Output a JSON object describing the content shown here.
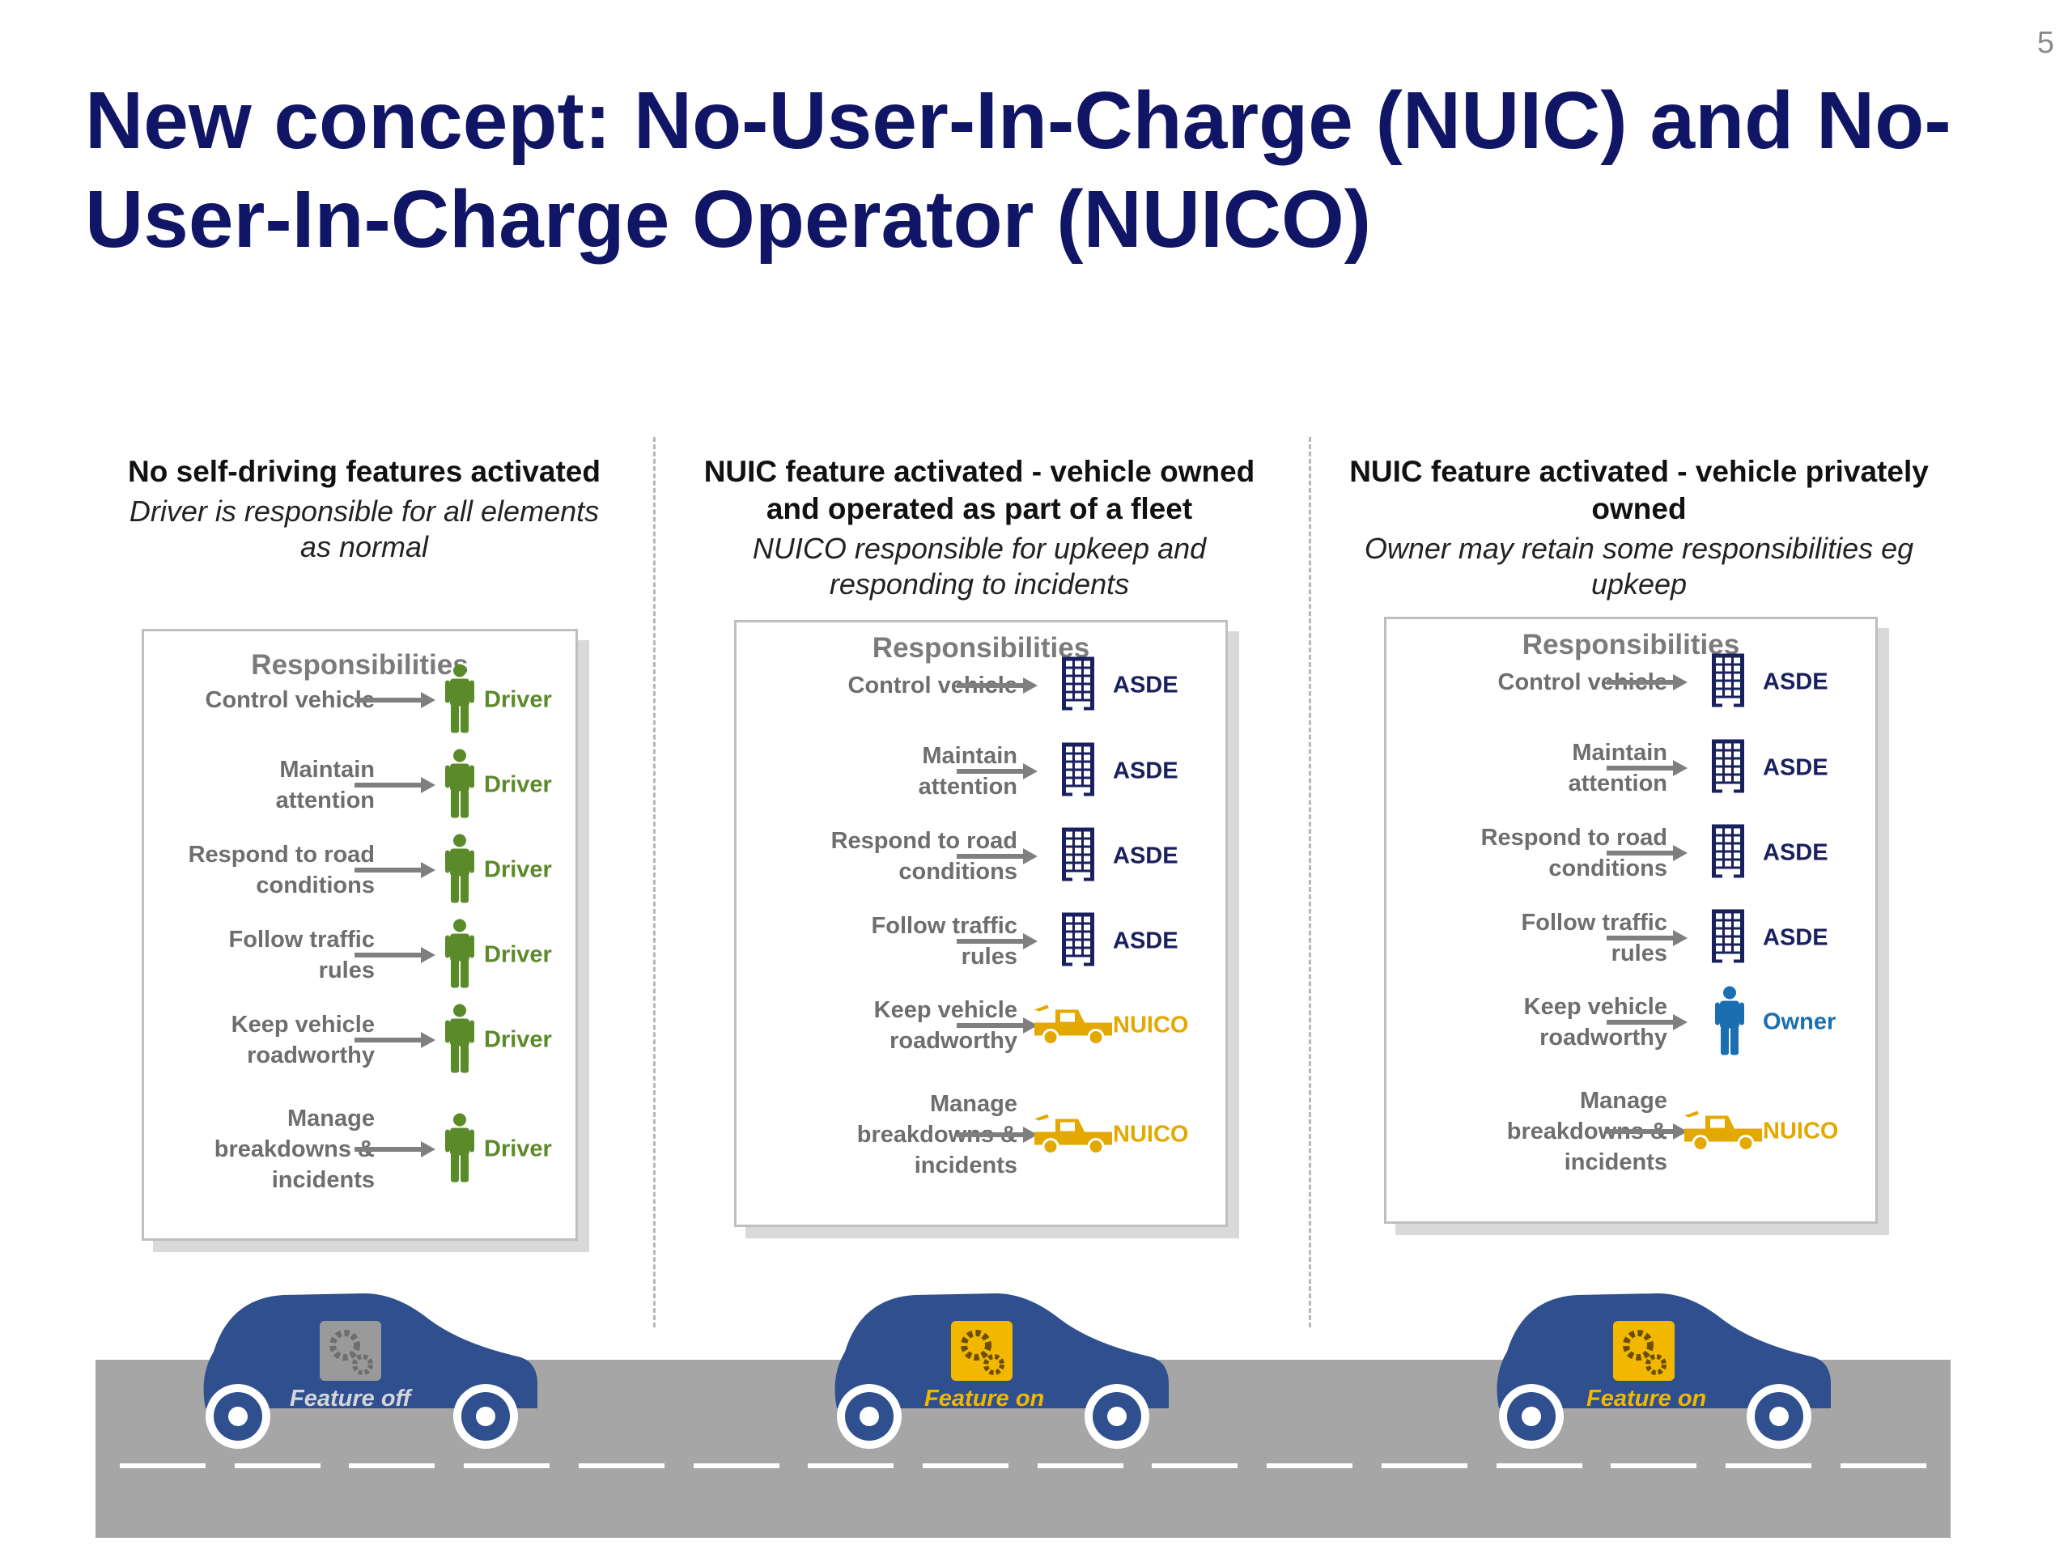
{
  "page_number": "5",
  "title": "New concept: No-User-In-Charge (NUIC) and No-User-In-Charge Operator (NUICO)",
  "colors": {
    "title": "#101566",
    "driver": "#5b8a2b",
    "asde": "#1a1f5e",
    "nuico": "#e3a900",
    "owner": "#1a6fb3",
    "car": "#2f4f8f",
    "road": "#a6a6a6"
  },
  "columns": [
    {
      "heading": "No self-driving features activated",
      "subtitle": "Driver is responsible for all elements as normal",
      "box_title": "Responsibilities",
      "rows": [
        {
          "label": "Control vehicle",
          "assignee": "Driver",
          "icon": "person-icon",
          "color": "#5b8a2b"
        },
        {
          "label": "Maintain attention",
          "assignee": "Driver",
          "icon": "person-icon",
          "color": "#5b8a2b"
        },
        {
          "label": "Respond to road conditions",
          "assignee": "Driver",
          "icon": "person-icon",
          "color": "#5b8a2b"
        },
        {
          "label": "Follow traffic rules",
          "assignee": "Driver",
          "icon": "person-icon",
          "color": "#5b8a2b"
        },
        {
          "label": "Keep vehicle roadworthy",
          "assignee": "Driver",
          "icon": "person-icon",
          "color": "#5b8a2b"
        },
        {
          "label": "Manage breakdowns & incidents",
          "assignee": "Driver",
          "icon": "person-icon",
          "color": "#5b8a2b"
        }
      ],
      "car_label": "Feature off",
      "car_badge_color": "#9a9a9a",
      "car_label_color": "#d6d6d6"
    },
    {
      "heading": "NUIC feature activated - vehicle owned and operated as part of a fleet",
      "subtitle": "NUICO responsible for upkeep and responding to incidents",
      "box_title": "Responsibilities",
      "rows": [
        {
          "label": "Control vehicle",
          "assignee": "ASDE",
          "icon": "building-icon",
          "color": "#1a1f5e"
        },
        {
          "label": "Maintain attention",
          "assignee": "ASDE",
          "icon": "building-icon",
          "color": "#1a1f5e"
        },
        {
          "label": "Respond to road conditions",
          "assignee": "ASDE",
          "icon": "building-icon",
          "color": "#1a1f5e"
        },
        {
          "label": "Follow traffic rules",
          "assignee": "ASDE",
          "icon": "building-icon",
          "color": "#1a1f5e"
        },
        {
          "label": "Keep vehicle roadworthy",
          "assignee": "NUICO",
          "icon": "tow-truck-icon",
          "color": "#e3a900"
        },
        {
          "label": "Manage breakdowns & incidents",
          "assignee": "NUICO",
          "icon": "tow-truck-icon",
          "color": "#e3a900"
        }
      ],
      "car_label": "Feature on",
      "car_badge_color": "#f2b800",
      "car_label_color": "#f2b800"
    },
    {
      "heading": "NUIC feature activated - vehicle privately owned",
      "subtitle": "Owner may retain some responsibilities eg upkeep",
      "box_title": "Responsibilities",
      "rows": [
        {
          "label": "Control vehicle",
          "assignee": "ASDE",
          "icon": "building-icon",
          "color": "#1a1f5e"
        },
        {
          "label": "Maintain attention",
          "assignee": "ASDE",
          "icon": "building-icon",
          "color": "#1a1f5e"
        },
        {
          "label": "Respond to road conditions",
          "assignee": "ASDE",
          "icon": "building-icon",
          "color": "#1a1f5e"
        },
        {
          "label": "Follow traffic rules",
          "assignee": "ASDE",
          "icon": "building-icon",
          "color": "#1a1f5e"
        },
        {
          "label": "Keep vehicle roadworthy",
          "assignee": "Owner",
          "icon": "person-icon",
          "color": "#1a6fb3"
        },
        {
          "label": "Manage breakdowns & incidents",
          "assignee": "NUICO",
          "icon": "tow-truck-icon",
          "color": "#e3a900"
        }
      ],
      "car_label": "Feature on",
      "car_badge_color": "#f2b800",
      "car_label_color": "#f2b800"
    }
  ]
}
